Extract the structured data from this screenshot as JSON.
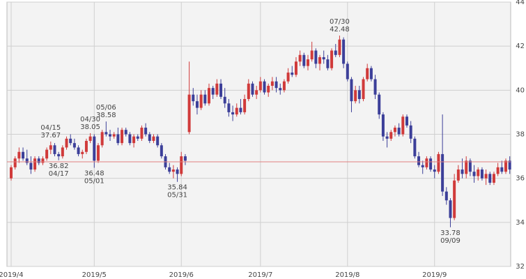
{
  "chart_data": {
    "type": "candlestick",
    "up_color": "#d03a3a",
    "down_color": "#3c3f99",
    "reference_line": 36.75,
    "reference_color": "#e08080",
    "grid": true,
    "ylim": [
      32,
      44
    ],
    "yticks": [
      32,
      34,
      36,
      38,
      40,
      42,
      44
    ],
    "xticks": [
      {
        "value": "04/01",
        "label": "2019/4"
      },
      {
        "value": "05/01",
        "label": "2019/5"
      },
      {
        "value": "06/03",
        "label": "2019/6"
      },
      {
        "value": "07/01",
        "label": "2019/7"
      },
      {
        "value": "08/01",
        "label": "2019/8"
      },
      {
        "value": "09/03",
        "label": "2019/9"
      }
    ],
    "x": [
      "04/01",
      "04/02",
      "04/03",
      "04/04",
      "04/05",
      "04/08",
      "04/09",
      "04/10",
      "04/11",
      "04/12",
      "04/15",
      "04/16",
      "04/17",
      "04/18",
      "04/22",
      "04/23",
      "04/24",
      "04/25",
      "04/26",
      "04/29",
      "04/30",
      "05/01",
      "05/02",
      "05/03",
      "05/06",
      "05/07",
      "05/08",
      "05/09",
      "05/10",
      "05/13",
      "05/14",
      "05/15",
      "05/16",
      "05/17",
      "05/20",
      "05/21",
      "05/22",
      "05/23",
      "05/24",
      "05/28",
      "05/29",
      "05/30",
      "05/31",
      "06/03",
      "06/04",
      "06/05",
      "06/06",
      "06/07",
      "06/10",
      "06/11",
      "06/12",
      "06/13",
      "06/14",
      "06/17",
      "06/18",
      "06/19",
      "06/20",
      "06/21",
      "06/24",
      "06/25",
      "06/26",
      "06/27",
      "06/28",
      "07/01",
      "07/02",
      "07/03",
      "07/05",
      "07/08",
      "07/09",
      "07/10",
      "07/11",
      "07/12",
      "07/15",
      "07/16",
      "07/17",
      "07/18",
      "07/19",
      "07/22",
      "07/23",
      "07/24",
      "07/25",
      "07/26",
      "07/29",
      "07/30",
      "07/31",
      "08/01",
      "08/02",
      "08/05",
      "08/06",
      "08/07",
      "08/08",
      "08/09",
      "08/12",
      "08/13",
      "08/14",
      "08/15",
      "08/16",
      "08/19",
      "08/20",
      "08/21",
      "08/22",
      "08/23",
      "08/26",
      "08/27",
      "08/28",
      "08/29",
      "08/30",
      "09/03",
      "09/04",
      "09/05",
      "09/06",
      "09/09",
      "09/10",
      "09/11",
      "09/12",
      "09/13",
      "09/16",
      "09/17",
      "09/18",
      "09/19",
      "09/20",
      "09/23",
      "09/24",
      "09/25",
      "09/26",
      "09/27",
      "09/30"
    ],
    "ohlc": [
      [
        36.0,
        36.6,
        35.9,
        36.5
      ],
      [
        36.5,
        37.0,
        36.4,
        36.9
      ],
      [
        36.9,
        37.4,
        36.7,
        37.2
      ],
      [
        37.2,
        37.4,
        36.8,
        36.9
      ],
      [
        36.9,
        37.3,
        36.6,
        36.7
      ],
      [
        36.7,
        37.0,
        36.2,
        36.4
      ],
      [
        36.4,
        37.0,
        36.3,
        36.9
      ],
      [
        36.9,
        37.0,
        36.6,
        36.7
      ],
      [
        36.7,
        37.0,
        36.6,
        36.9
      ],
      [
        36.9,
        37.4,
        36.8,
        37.3
      ],
      [
        37.3,
        37.67,
        37.1,
        37.5
      ],
      [
        37.5,
        37.6,
        37.0,
        37.1
      ],
      [
        37.1,
        37.2,
        36.82,
        37.0
      ],
      [
        37.0,
        37.5,
        36.9,
        37.4
      ],
      [
        37.4,
        37.9,
        37.3,
        37.8
      ],
      [
        37.8,
        38.0,
        37.5,
        37.6
      ],
      [
        37.6,
        37.8,
        37.3,
        37.4
      ],
      [
        37.4,
        37.5,
        37.0,
        37.1
      ],
      [
        37.1,
        37.3,
        36.9,
        37.2
      ],
      [
        37.2,
        37.8,
        37.1,
        37.7
      ],
      [
        37.7,
        38.05,
        37.6,
        37.9
      ],
      [
        37.9,
        38.0,
        36.48,
        36.8
      ],
      [
        36.8,
        37.6,
        36.7,
        37.5
      ],
      [
        37.5,
        38.2,
        37.4,
        38.1
      ],
      [
        38.1,
        38.58,
        37.9,
        38.0
      ],
      [
        38.0,
        38.2,
        37.7,
        37.9
      ],
      [
        37.9,
        38.1,
        37.8,
        38.0
      ],
      [
        38.0,
        38.3,
        37.5,
        37.6
      ],
      [
        37.6,
        38.3,
        37.5,
        38.2
      ],
      [
        38.2,
        38.3,
        37.9,
        38.0
      ],
      [
        38.0,
        38.1,
        37.5,
        37.6
      ],
      [
        37.6,
        38.0,
        37.4,
        37.9
      ],
      [
        37.9,
        38.0,
        37.7,
        37.8
      ],
      [
        37.8,
        38.4,
        37.7,
        38.3
      ],
      [
        38.3,
        38.5,
        37.9,
        38.0
      ],
      [
        38.0,
        38.1,
        37.6,
        37.7
      ],
      [
        37.7,
        38.0,
        37.6,
        37.9
      ],
      [
        37.9,
        38.0,
        37.4,
        37.5
      ],
      [
        37.5,
        37.6,
        36.9,
        37.0
      ],
      [
        37.0,
        37.1,
        36.4,
        36.5
      ],
      [
        36.5,
        36.7,
        36.2,
        36.3
      ],
      [
        36.3,
        36.6,
        36.0,
        36.4
      ],
      [
        36.4,
        36.5,
        35.84,
        36.2
      ],
      [
        36.2,
        37.2,
        36.1,
        37.0
      ],
      [
        37.0,
        37.1,
        36.6,
        36.8
      ],
      [
        38.1,
        41.3,
        38.0,
        39.8
      ],
      [
        39.8,
        40.1,
        39.3,
        39.5
      ],
      [
        39.5,
        39.8,
        38.9,
        39.2
      ],
      [
        39.2,
        40.0,
        39.1,
        39.8
      ],
      [
        39.8,
        40.0,
        39.3,
        39.4
      ],
      [
        39.4,
        40.3,
        39.3,
        40.1
      ],
      [
        40.1,
        40.2,
        39.6,
        39.8
      ],
      [
        39.8,
        40.5,
        39.7,
        40.3
      ],
      [
        40.3,
        40.5,
        39.6,
        39.7
      ],
      [
        39.7,
        40.1,
        39.2,
        39.4
      ],
      [
        39.4,
        39.6,
        38.8,
        39.0
      ],
      [
        39.0,
        39.3,
        38.6,
        38.9
      ],
      [
        38.9,
        39.4,
        38.8,
        39.2
      ],
      [
        39.2,
        39.6,
        38.9,
        39.0
      ],
      [
        39.0,
        39.8,
        38.9,
        39.6
      ],
      [
        39.6,
        40.5,
        39.5,
        40.3
      ],
      [
        40.3,
        40.4,
        39.7,
        39.8
      ],
      [
        39.8,
        40.2,
        39.6,
        40.0
      ],
      [
        40.0,
        40.6,
        39.9,
        40.4
      ],
      [
        40.4,
        40.5,
        39.8,
        39.9
      ],
      [
        39.9,
        40.3,
        39.7,
        40.2
      ],
      [
        40.2,
        40.6,
        40.0,
        40.4
      ],
      [
        40.4,
        40.6,
        39.9,
        40.1
      ],
      [
        40.1,
        40.3,
        39.8,
        40.0
      ],
      [
        40.0,
        40.5,
        39.9,
        40.4
      ],
      [
        40.4,
        41.0,
        40.3,
        40.8
      ],
      [
        40.8,
        41.1,
        40.6,
        40.7
      ],
      [
        40.7,
        41.5,
        40.6,
        41.3
      ],
      [
        41.3,
        41.8,
        41.1,
        41.6
      ],
      [
        41.6,
        41.7,
        41.0,
        41.1
      ],
      [
        41.1,
        41.6,
        40.9,
        41.4
      ],
      [
        41.4,
        42.2,
        41.3,
        41.8
      ],
      [
        41.8,
        41.9,
        41.0,
        41.2
      ],
      [
        41.2,
        41.6,
        40.9,
        41.5
      ],
      [
        41.5,
        41.8,
        41.2,
        41.4
      ],
      [
        41.4,
        41.6,
        40.9,
        41.0
      ],
      [
        41.0,
        41.9,
        40.9,
        41.8
      ],
      [
        41.8,
        42.1,
        41.5,
        41.6
      ],
      [
        41.6,
        42.48,
        41.5,
        42.3
      ],
      [
        42.3,
        42.4,
        41.0,
        41.2
      ],
      [
        41.2,
        41.3,
        40.4,
        40.5
      ],
      [
        40.5,
        40.6,
        39.0,
        39.5
      ],
      [
        39.5,
        40.2,
        39.4,
        40.0
      ],
      [
        40.0,
        40.2,
        39.4,
        39.6
      ],
      [
        39.6,
        40.6,
        39.5,
        40.5
      ],
      [
        40.5,
        41.2,
        40.4,
        41.0
      ],
      [
        41.0,
        41.1,
        40.4,
        40.5
      ],
      [
        40.5,
        40.7,
        39.6,
        39.8
      ],
      [
        39.8,
        39.9,
        38.7,
        38.9
      ],
      [
        38.9,
        39.0,
        37.7,
        37.9
      ],
      [
        37.9,
        38.1,
        37.4,
        37.8
      ],
      [
        37.8,
        38.2,
        37.7,
        38.1
      ],
      [
        38.1,
        38.4,
        37.9,
        38.3
      ],
      [
        38.3,
        38.5,
        37.9,
        38.0
      ],
      [
        38.0,
        38.9,
        37.9,
        38.8
      ],
      [
        38.8,
        38.9,
        38.3,
        38.4
      ],
      [
        38.4,
        38.6,
        37.6,
        37.8
      ],
      [
        37.8,
        37.9,
        36.9,
        37.0
      ],
      [
        37.0,
        37.2,
        36.5,
        36.6
      ],
      [
        36.6,
        36.8,
        36.2,
        36.5
      ],
      [
        36.5,
        37.0,
        36.4,
        36.9
      ],
      [
        36.9,
        37.0,
        36.3,
        36.4
      ],
      [
        36.4,
        36.6,
        36.0,
        36.3
      ],
      [
        36.3,
        37.2,
        36.2,
        37.1
      ],
      [
        37.1,
        38.9,
        35.2,
        35.4
      ],
      [
        35.4,
        35.6,
        34.8,
        35.0
      ],
      [
        35.0,
        35.1,
        33.78,
        34.2
      ],
      [
        34.2,
        36.2,
        34.1,
        35.9
      ],
      [
        35.9,
        36.6,
        35.8,
        36.4
      ],
      [
        36.4,
        36.9,
        36.0,
        36.2
      ],
      [
        36.2,
        37.0,
        36.0,
        36.8
      ],
      [
        36.8,
        36.9,
        36.1,
        36.3
      ],
      [
        36.3,
        36.6,
        35.8,
        36.1
      ],
      [
        36.1,
        36.5,
        35.9,
        36.4
      ],
      [
        36.4,
        36.5,
        35.9,
        36.0
      ],
      [
        36.0,
        36.4,
        35.7,
        36.2
      ],
      [
        36.2,
        36.3,
        35.7,
        35.8
      ],
      [
        35.8,
        36.3,
        35.7,
        36.2
      ],
      [
        36.2,
        36.7,
        36.1,
        36.5
      ],
      [
        36.5,
        36.8,
        36.2,
        36.3
      ],
      [
        36.3,
        36.9,
        36.2,
        36.8
      ],
      [
        36.8,
        37.0,
        36.2,
        36.4
      ]
    ],
    "annotations": [
      {
        "x": "04/15",
        "value": 37.67,
        "side": "above"
      },
      {
        "x": "04/17",
        "value": 36.82,
        "side": "below"
      },
      {
        "x": "04/30",
        "value": 38.05,
        "side": "above"
      },
      {
        "x": "05/01",
        "value": 36.48,
        "side": "below"
      },
      {
        "x": "05/06",
        "value": 38.58,
        "side": "above"
      },
      {
        "x": "05/31",
        "value": 35.84,
        "side": "below"
      },
      {
        "x": "07/30",
        "value": 42.48,
        "side": "above"
      },
      {
        "x": "09/09",
        "value": 33.78,
        "side": "below"
      }
    ]
  }
}
